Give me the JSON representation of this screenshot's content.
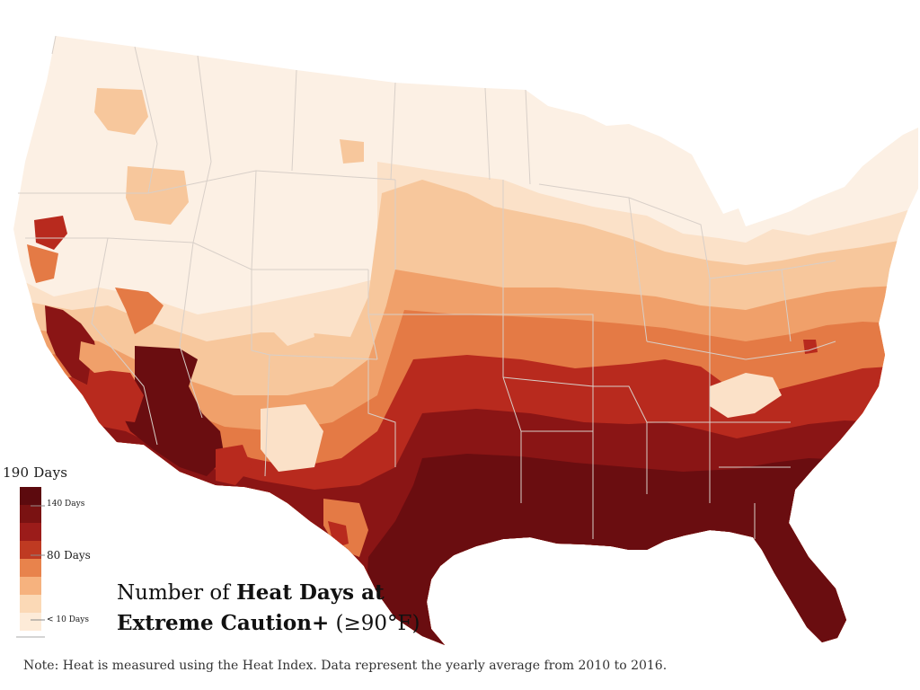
{
  "map": {
    "title_lines": [
      {
        "normal": "Number of ",
        "bold": "Heat Days at",
        "tail": ""
      },
      {
        "normal": "",
        "bold": "Extreme Caution+",
        "tail": " (≥90°F)"
      }
    ],
    "note": "Note: Heat is measured using the Heat Index. Data represent the yearly average from 2010 to 2016.",
    "legend": {
      "max_label": "190 Days",
      "labels": [
        "140 Days",
        "80 Days",
        "< 10 Days"
      ],
      "swatches": [
        "#5c0a0e",
        "#7a1212",
        "#9b1c1a",
        "#bf3a22",
        "#e8834c",
        "#f6b27e",
        "#fbd9b6",
        "#fdebd8"
      ]
    },
    "colors": {
      "base": "#fcf0e4",
      "light": "#fbe1c8",
      "pale_orange": "#f7c79c",
      "orange": "#f0a06a",
      "dark_orange": "#e47a45",
      "red": "#b82a1e",
      "dark_red": "#8a1515",
      "darkest": "#6a0d10",
      "borders": "#d8cfc8"
    }
  }
}
